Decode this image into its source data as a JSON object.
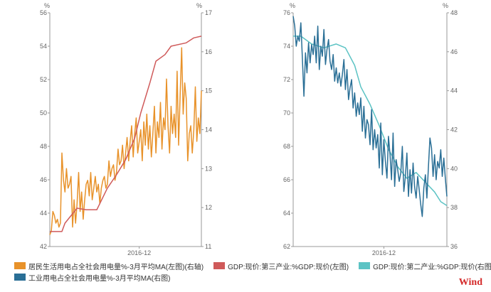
{
  "colors": {
    "orange": "#E8922A",
    "red": "#CF5A5A",
    "teal": "#5CC3C4",
    "blue": "#2A6F96",
    "axis": "#999999",
    "brand": "#D42A2A"
  },
  "brand": "Wind",
  "chart_data": [
    {
      "type": "line",
      "unit_left": "%",
      "unit_right": "%",
      "x_tick_label": "2016-12",
      "left_axis": {
        "min": 42,
        "max": 56,
        "ticks": [
          42,
          44,
          46,
          48,
          50,
          52,
          54,
          56
        ]
      },
      "right_axis": {
        "min": 11,
        "max": 17,
        "ticks": [
          11,
          12,
          13,
          14,
          15,
          16,
          17
        ]
      },
      "x_range": [
        0,
        100
      ],
      "x_tick_at": 59,
      "series": [
        {
          "name": "居民生活用电占全社会用电量%-3月平均MA(左图)(右轴)",
          "axis": "right",
          "color": "orange",
          "x": [
            0,
            1,
            2,
            3,
            4,
            5,
            6,
            7,
            8,
            9,
            10,
            11,
            12,
            13,
            14,
            15,
            16,
            17,
            18,
            19,
            20,
            21,
            22,
            23,
            24,
            25,
            26,
            27,
            28,
            29,
            30,
            31,
            32,
            33,
            34,
            35,
            36,
            37,
            38,
            39,
            40,
            41,
            42,
            43,
            44,
            45,
            46,
            47,
            48,
            49,
            50,
            51,
            52,
            53,
            54,
            55,
            56,
            57,
            58,
            59,
            60,
            61,
            62,
            63,
            64,
            65,
            66,
            67,
            68,
            69,
            70,
            71,
            72,
            73,
            74,
            75,
            76,
            77,
            78,
            79,
            80,
            81,
            82,
            83,
            84,
            85,
            86,
            87,
            88,
            89,
            90,
            91,
            92,
            93,
            94,
            95,
            96,
            97,
            98,
            99,
            100
          ],
          "values": [
            11.3,
            11.4,
            11.9,
            11.8,
            11.6,
            11.7,
            11.5,
            11.6,
            13.4,
            12.7,
            12.4,
            13.0,
            12.5,
            12.6,
            12.8,
            11.5,
            12.2,
            11.6,
            12.1,
            12.9,
            11.9,
            12.4,
            11.7,
            12.2,
            12.6,
            12.7,
            12.3,
            12.9,
            12.2,
            12.5,
            12.8,
            12.4,
            12.6,
            12.1,
            12.5,
            12.7,
            12.8,
            12.5,
            12.6,
            13.2,
            12.8,
            13.0,
            13.1,
            12.7,
            12.9,
            13.5,
            13.1,
            13.2,
            13.6,
            13.0,
            13.4,
            13.8,
            13.2,
            13.7,
            14.1,
            13.3,
            13.9,
            14.3,
            13.4,
            13.7,
            14.0,
            13.2,
            14.2,
            13.6,
            14.4,
            13.5,
            14.1,
            13.3,
            13.9,
            14.6,
            13.4,
            14.2,
            13.8,
            14.7,
            13.5,
            14.3,
            14.0,
            15.3,
            14.1,
            13.4,
            14.6,
            13.9,
            14.4,
            13.8,
            15.5,
            13.6,
            14.9,
            16.1,
            14.4,
            15.2,
            14.8,
            13.2,
            13.9,
            14.1,
            13.4,
            14.0,
            15.1,
            13.7,
            14.3,
            13.9,
            15.0
          ]
        },
        {
          "name": "GDP:现价:第三产业:%GDP:现价(左图)",
          "axis": "left",
          "color": "red",
          "x": [
            0,
            8,
            10,
            18,
            24,
            31,
            38,
            44,
            50,
            56,
            60,
            66,
            70,
            76,
            80,
            90,
            95,
            100
          ],
          "values": [
            42.9,
            42.9,
            43.4,
            44.3,
            44.2,
            44.2,
            45.5,
            46.3,
            47.2,
            48.5,
            50.0,
            51.8,
            53.1,
            53.5,
            54.0,
            54.2,
            54.5,
            54.6
          ]
        }
      ]
    },
    {
      "type": "line",
      "unit_left": "%",
      "unit_right": "%",
      "x_tick_label": "2016-12",
      "left_axis": {
        "min": 62,
        "max": 76,
        "ticks": [
          62,
          64,
          66,
          68,
          70,
          72,
          74,
          76
        ]
      },
      "right_axis": {
        "min": 36,
        "max": 48,
        "ticks": [
          36,
          38,
          40,
          42,
          44,
          46,
          48
        ]
      },
      "x_range": [
        0,
        100
      ],
      "x_tick_at": 59,
      "series": [
        {
          "name": "GDP:现价:第二产业:%GDP:现价(右图)(右轴)",
          "axis": "right",
          "color": "teal",
          "x": [
            0,
            5,
            12,
            20,
            28,
            34,
            40,
            44,
            50,
            56,
            62,
            68,
            74,
            80,
            86,
            92,
            96,
            100
          ],
          "values": [
            46.8,
            46.8,
            46.4,
            46.2,
            46.4,
            46.2,
            45.3,
            44.2,
            43.3,
            42.2,
            41.0,
            40.1,
            39.5,
            39.8,
            39.3,
            38.8,
            38.3,
            38.1
          ]
        },
        {
          "name": "工业用电占全社会用电量%-3月平均MA(右图)",
          "axis": "left",
          "color": "blue",
          "x": [
            0,
            1,
            2,
            3,
            4,
            5,
            6,
            7,
            8,
            9,
            10,
            11,
            12,
            13,
            14,
            15,
            16,
            17,
            18,
            19,
            20,
            21,
            22,
            23,
            24,
            25,
            26,
            27,
            28,
            29,
            30,
            31,
            32,
            33,
            34,
            35,
            36,
            37,
            38,
            39,
            40,
            41,
            42,
            43,
            44,
            45,
            46,
            47,
            48,
            49,
            50,
            51,
            52,
            53,
            54,
            55,
            56,
            57,
            58,
            59,
            60,
            61,
            62,
            63,
            64,
            65,
            66,
            67,
            68,
            69,
            70,
            71,
            72,
            73,
            74,
            75,
            76,
            77,
            78,
            79,
            80,
            81,
            82,
            83,
            84,
            85,
            86,
            87,
            88,
            89,
            90,
            91,
            92,
            93,
            94,
            95,
            96,
            97,
            98,
            99,
            100
          ],
          "values": [
            75.8,
            75.2,
            74.0,
            74.6,
            74.3,
            75.4,
            73.2,
            71.0,
            73.6,
            72.4,
            74.2,
            73.0,
            74.1,
            73.5,
            74.6,
            73.0,
            75.2,
            72.6,
            74.0,
            73.4,
            75.0,
            72.9,
            73.8,
            74.4,
            73.1,
            72.6,
            73.5,
            71.9,
            72.7,
            71.8,
            72.4,
            71.6,
            72.3,
            73.2,
            71.4,
            72.6,
            70.8,
            71.5,
            72.0,
            70.3,
            71.2,
            69.8,
            70.6,
            69.9,
            70.9,
            68.9,
            70.4,
            68.5,
            69.6,
            69.3,
            68.1,
            70.2,
            67.8,
            69.0,
            67.9,
            68.7,
            66.7,
            69.4,
            66.3,
            68.4,
            67.1,
            66.1,
            68.6,
            67.5,
            66.0,
            68.8,
            65.6,
            67.2,
            66.6,
            65.9,
            66.4,
            68.0,
            65.3,
            66.2,
            67.6,
            65.0,
            66.6,
            65.2,
            67.0,
            65.6,
            64.9,
            66.2,
            65.4,
            64.5,
            63.8,
            65.5,
            66.3,
            64.9,
            66.8,
            68.5,
            67.9,
            66.2,
            67.5,
            66.0,
            67.1,
            66.7,
            67.8,
            66.2,
            67.3,
            66.1,
            65.0
          ]
        }
      ]
    }
  ]
}
